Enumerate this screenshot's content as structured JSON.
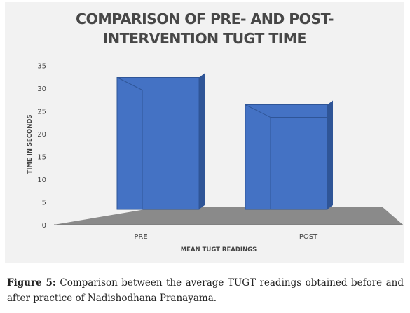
{
  "chart_data": {
    "type": "bar",
    "title_lines": [
      "COMPARISON OF PRE- AND POST-",
      "INTERVENTION TUGT TIME"
    ],
    "categories": [
      "PRE",
      "POST"
    ],
    "values": [
      29,
      23
    ],
    "ylabel": "TIME IN SECONDS",
    "xlabel": "MEAN TUGT READINGS",
    "ylim": [
      0,
      35
    ],
    "yticks": [
      "0",
      "5",
      "10",
      "15",
      "20",
      "25",
      "30",
      "35"
    ],
    "style": "3d-column",
    "grid": false,
    "bar_color": "#4472c4"
  },
  "caption": {
    "label": "Figure 5:",
    "text": "Comparison between the average TUGT readings obtained before and after practice of Nadishodhana Pranayama."
  }
}
